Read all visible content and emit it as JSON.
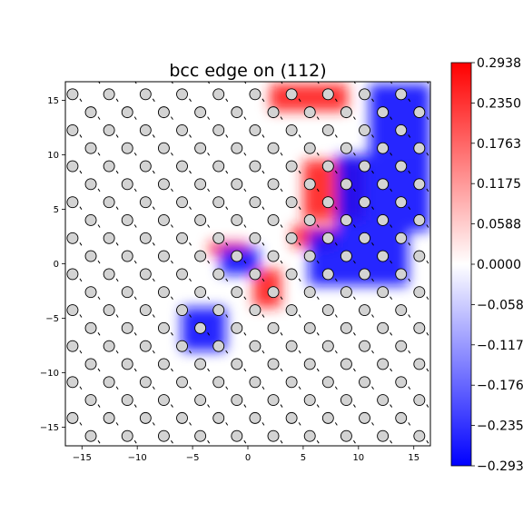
{
  "chart_data": {
    "type": "heatmap",
    "title": "bcc edge on (112)",
    "xlim": [
      -16.5,
      16.5
    ],
    "ylim": [
      -16.7,
      16.7
    ],
    "x_ticks": [
      -15,
      -10,
      -5,
      0,
      5,
      10,
      15
    ],
    "y_ticks": [
      15,
      10,
      5,
      0,
      -5,
      -10,
      -15
    ],
    "x_tick_labels": [
      "−15",
      "−10",
      "−5",
      "0",
      "5",
      "10",
      "15"
    ],
    "y_tick_labels": [
      "15",
      "10",
      "5",
      "0",
      "−5",
      "−10",
      "−15"
    ],
    "colorbar": {
      "min": -0.2938,
      "max": 0.2938,
      "colormap": "bwr",
      "ticks": [
        0.2938,
        0.235,
        0.1763,
        0.1175,
        0.0588,
        0.0,
        -0.0588,
        -0.1175,
        -0.1763,
        -0.235,
        -0.2938
      ],
      "tick_labels": [
        "0.2938",
        "0.2350",
        "0.1763",
        "0.1175",
        "0.0588",
        "0.0000",
        "−0.0588",
        "−0.1175",
        "−0.1763",
        "−0.2350",
        "−0.2938"
      ]
    },
    "atom_color": "#d3d3d3",
    "arrow_color": "#000000",
    "strain_regions": [
      {
        "sign": "positive",
        "x": [
          0.5,
          3.0
        ],
        "y": [
          -4.0,
          -0.5
        ]
      },
      {
        "sign": "positive",
        "x": [
          4.0,
          8.0
        ],
        "y": [
          1.5,
          3.5
        ]
      },
      {
        "sign": "positive",
        "x": [
          5.0,
          10.5
        ],
        "y": [
          4.0,
          9.5
        ]
      },
      {
        "sign": "positive",
        "x": [
          2.0,
          9.0
        ],
        "y": [
          14.0,
          16.5
        ]
      },
      {
        "sign": "positive",
        "x": [
          -3.5,
          0.0
        ],
        "y": [
          0.8,
          2.0
        ]
      },
      {
        "sign": "negative",
        "x": [
          -2.5,
          1.0
        ],
        "y": [
          -1.0,
          1.5
        ]
      },
      {
        "sign": "negative",
        "x": [
          5.5,
          14.5
        ],
        "y": [
          -2.0,
          3.0
        ]
      },
      {
        "sign": "negative",
        "x": [
          8.0,
          16.5
        ],
        "y": [
          3.0,
          10.0
        ]
      },
      {
        "sign": "negative",
        "x": [
          11.0,
          16.5
        ],
        "y": [
          10.0,
          16.5
        ]
      },
      {
        "sign": "negative",
        "x": [
          -6.0,
          -2.0
        ],
        "y": [
          -8.0,
          -4.0
        ]
      }
    ]
  }
}
